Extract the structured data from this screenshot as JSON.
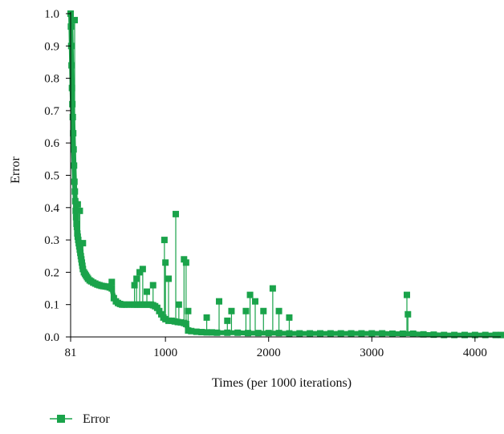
{
  "chart_data": {
    "type": "line",
    "title": "",
    "xlabel": "Times (per 1000 iterations)",
    "ylabel": "Error",
    "xlim": [
      81,
      4250
    ],
    "ylim": [
      0,
      1.0
    ],
    "x_ticks": [
      81,
      1000,
      2000,
      3000,
      4000
    ],
    "x_tick_labels": [
      "81",
      "1000",
      "2000",
      "3000",
      "4000"
    ],
    "y_ticks": [
      0,
      0.1,
      0.2,
      0.3,
      0.4,
      0.5,
      0.6,
      0.7,
      0.8,
      0.9,
      1.0
    ],
    "y_tick_labels": [
      "0.0",
      "0.1",
      "0.2",
      "0.3",
      "0.4",
      "0.5",
      "0.6",
      "0.7",
      "0.8",
      "0.9",
      "1.0"
    ],
    "grid": false,
    "legend_position": "bottom-left",
    "colors": {
      "series": "#1aa34a",
      "axis": "#000000"
    },
    "series": [
      {
        "name": "Error",
        "marker": "square",
        "points": [
          [
            81,
            1.0
          ],
          [
            84,
            0.96
          ],
          [
            87,
            0.9
          ],
          [
            90,
            0.84
          ],
          [
            94,
            0.77
          ],
          [
            98,
            0.72
          ],
          [
            102,
            0.68
          ],
          [
            106,
            0.63
          ],
          [
            110,
            0.58
          ],
          [
            114,
            0.53
          ],
          [
            118,
            0.48
          ],
          [
            122,
            0.45
          ],
          [
            126,
            0.42
          ],
          [
            130,
            0.39
          ],
          [
            134,
            0.37
          ],
          [
            138,
            0.35
          ],
          [
            142,
            0.34
          ],
          [
            146,
            0.32
          ],
          [
            150,
            0.31
          ],
          [
            155,
            0.3
          ],
          [
            160,
            0.29
          ],
          [
            165,
            0.28
          ],
          [
            170,
            0.27
          ],
          [
            175,
            0.26
          ],
          [
            180,
            0.25
          ],
          [
            185,
            0.24
          ],
          [
            190,
            0.23
          ],
          [
            195,
            0.22
          ],
          [
            200,
            0.21
          ],
          [
            210,
            0.2
          ],
          [
            220,
            0.195
          ],
          [
            230,
            0.19
          ],
          [
            240,
            0.185
          ],
          [
            250,
            0.18
          ],
          [
            265,
            0.175
          ],
          [
            280,
            0.172
          ],
          [
            300,
            0.168
          ],
          [
            320,
            0.165
          ],
          [
            340,
            0.162
          ],
          [
            360,
            0.16
          ],
          [
            380,
            0.158
          ],
          [
            400,
            0.157
          ],
          [
            420,
            0.156
          ],
          [
            440,
            0.155
          ],
          [
            460,
            0.153
          ],
          [
            480,
            0.15
          ],
          [
            500,
            0.12
          ],
          [
            520,
            0.11
          ],
          [
            540,
            0.105
          ],
          [
            560,
            0.102
          ],
          [
            580,
            0.1
          ],
          [
            600,
            0.1
          ],
          [
            620,
            0.1
          ],
          [
            650,
            0.1
          ],
          [
            680,
            0.1
          ],
          [
            700,
            0.1
          ],
          [
            720,
            0.1
          ],
          [
            740,
            0.1
          ],
          [
            760,
            0.1
          ],
          [
            780,
            0.1
          ],
          [
            800,
            0.1
          ],
          [
            820,
            0.1
          ],
          [
            840,
            0.1
          ],
          [
            860,
            0.1
          ],
          [
            880,
            0.098
          ],
          [
            900,
            0.095
          ],
          [
            920,
            0.09
          ],
          [
            940,
            0.08
          ],
          [
            960,
            0.07
          ],
          [
            980,
            0.06
          ],
          [
            1000,
            0.055
          ],
          [
            1030,
            0.05
          ],
          [
            1060,
            0.05
          ],
          [
            1090,
            0.048
          ],
          [
            1120,
            0.046
          ],
          [
            1150,
            0.045
          ],
          [
            1180,
            0.043
          ],
          [
            1200,
            0.04
          ],
          [
            1220,
            0.02
          ],
          [
            1250,
            0.018
          ],
          [
            1300,
            0.016
          ],
          [
            1350,
            0.015
          ],
          [
            1400,
            0.014
          ],
          [
            1450,
            0.014
          ],
          [
            1500,
            0.013
          ],
          [
            1600,
            0.013
          ],
          [
            1700,
            0.013
          ],
          [
            1800,
            0.012
          ],
          [
            1900,
            0.012
          ],
          [
            2000,
            0.012
          ],
          [
            2100,
            0.012
          ],
          [
            2200,
            0.011
          ],
          [
            2300,
            0.011
          ],
          [
            2400,
            0.011
          ],
          [
            2500,
            0.011
          ],
          [
            2600,
            0.011
          ],
          [
            2700,
            0.011
          ],
          [
            2800,
            0.011
          ],
          [
            2900,
            0.011
          ],
          [
            3000,
            0.011
          ],
          [
            3100,
            0.011
          ],
          [
            3200,
            0.01
          ],
          [
            3300,
            0.01
          ],
          [
            3400,
            0.01
          ],
          [
            3500,
            0.008
          ],
          [
            3600,
            0.007
          ],
          [
            3700,
            0.006
          ],
          [
            3800,
            0.006
          ],
          [
            3900,
            0.006
          ],
          [
            4000,
            0.006
          ],
          [
            4100,
            0.006
          ],
          [
            4200,
            0.006
          ],
          [
            4250,
            0.006
          ]
        ],
        "spikes": [
          [
            120,
            0.98
          ],
          [
            135,
            0.41
          ],
          [
            150,
            0.41
          ],
          [
            170,
            0.39
          ],
          [
            200,
            0.29
          ],
          [
            480,
            0.17
          ],
          [
            700,
            0.16
          ],
          [
            720,
            0.18
          ],
          [
            750,
            0.2
          ],
          [
            780,
            0.21
          ],
          [
            820,
            0.14
          ],
          [
            880,
            0.16
          ],
          [
            990,
            0.3
          ],
          [
            1000,
            0.23
          ],
          [
            1030,
            0.18
          ],
          [
            1100,
            0.38
          ],
          [
            1130,
            0.1
          ],
          [
            1180,
            0.24
          ],
          [
            1200,
            0.23
          ],
          [
            1220,
            0.08
          ],
          [
            1400,
            0.06
          ],
          [
            1520,
            0.11
          ],
          [
            1600,
            0.05
          ],
          [
            1640,
            0.08
          ],
          [
            1780,
            0.08
          ],
          [
            1820,
            0.13
          ],
          [
            1870,
            0.11
          ],
          [
            1950,
            0.08
          ],
          [
            2040,
            0.15
          ],
          [
            2100,
            0.08
          ],
          [
            2200,
            0.06
          ],
          [
            3340,
            0.13
          ],
          [
            3350,
            0.07
          ]
        ]
      }
    ]
  }
}
